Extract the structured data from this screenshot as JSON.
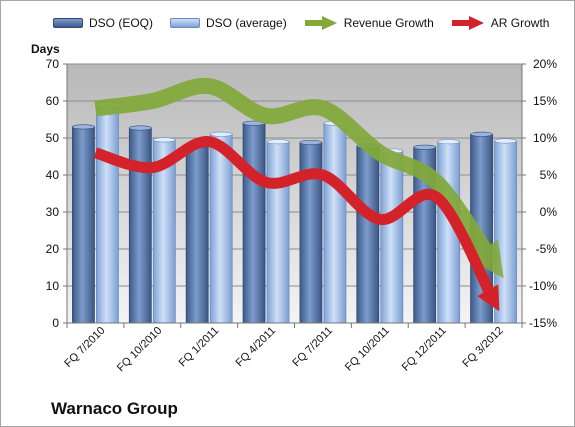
{
  "company": "Warnaco Group",
  "chart_data": {
    "type": "bar",
    "categories": [
      "FQ 7/2010",
      "FQ 10/2010",
      "FQ 1/2011",
      "FQ 4/2011",
      "FQ 7/2011",
      "FQ 10/2011",
      "FQ 12/2011",
      "FQ 3/2012"
    ],
    "ylabel": "Days",
    "ylim": [
      0,
      70
    ],
    "yticks": [
      0,
      10,
      20,
      30,
      40,
      50,
      60,
      70
    ],
    "y2lim": [
      -15,
      20
    ],
    "y2ticks": [
      "-15%",
      "-10%",
      "-5%",
      "0%",
      "5%",
      "10%",
      "15%",
      "20%"
    ],
    "y2ticks_values": [
      -15,
      -10,
      -5,
      0,
      5,
      10,
      15,
      20
    ],
    "grid": true,
    "legend_position": "top",
    "series": [
      {
        "name": "DSO (EOQ)",
        "kind": "bar",
        "axis": "left",
        "color": "#4f6fa0",
        "values": [
          53,
          52.7,
          48,
          54,
          48.8,
          47.8,
          47.5,
          51
        ]
      },
      {
        "name": "DSO (average)",
        "kind": "bar",
        "axis": "left",
        "color": "#9db9e4",
        "values": [
          59,
          49.5,
          51,
          49,
          54,
          46.5,
          49,
          49.2
        ]
      },
      {
        "name": "Revenue Growth",
        "kind": "arrow-line",
        "axis": "right",
        "color": "#82a93a",
        "values": [
          14,
          15,
          17,
          13,
          14,
          8,
          4,
          -7
        ]
      },
      {
        "name": "AR Growth",
        "kind": "arrow-line",
        "axis": "right",
        "color": "#d4222b",
        "values": [
          8,
          6,
          9.5,
          4,
          5,
          -1,
          2,
          -12
        ]
      }
    ]
  }
}
